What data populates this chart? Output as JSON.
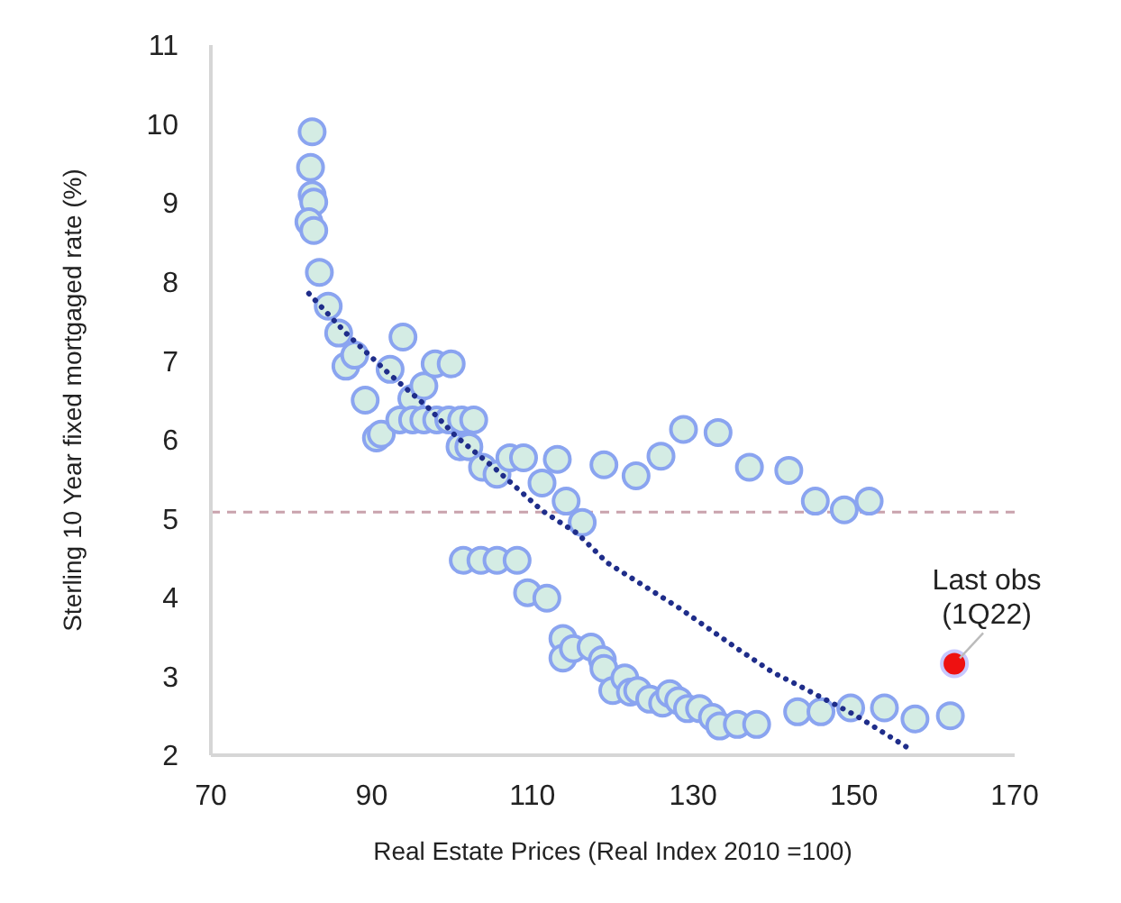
{
  "chart_data": {
    "type": "scatter",
    "xlabel": "Real Estate Prices (Real Index 2010 =100)",
    "ylabel": "Sterling 10 Year fixed mortgaged rate (%)",
    "xlim": [
      70,
      170
    ],
    "xticks": [
      70,
      90,
      110,
      130,
      150,
      170
    ],
    "ylim": [
      2,
      11
    ],
    "yticks": [
      2,
      3,
      4,
      5,
      6,
      7,
      8,
      9,
      10,
      11
    ],
    "grid": false,
    "marker": "circle",
    "series": [
      {
        "color": "#d4ece4",
        "x": [
          82.6,
          82.4,
          82.6,
          82.8,
          82.2,
          82.8,
          83.5,
          84.6,
          85.9,
          86.8,
          87.9,
          89.2,
          90.6,
          91.2,
          92.3,
          93.9,
          95.0,
          96.5,
          97.9,
          99.9,
          93.5,
          95.1,
          96.5,
          98.1,
          99.6,
          101.2,
          102.7,
          101.0,
          102.1,
          103.8,
          105.6,
          107.2,
          108.9,
          111.2,
          113.1,
          114.2,
          116.2,
          118.9,
          122.9,
          126.0,
          128.8,
          133.1,
          137.0,
          141.9,
          145.2,
          148.8,
          151.9,
          101.4,
          103.6,
          105.6,
          108.1,
          109.4,
          111.8,
          113.8,
          113.8,
          115.1,
          117.3,
          118.7,
          118.9,
          120.0,
          121.5,
          122.2,
          123.1,
          124.6,
          126.2,
          127.1,
          128.2,
          129.3,
          130.8,
          132.4,
          133.3,
          135.5,
          137.9,
          143.0,
          145.9,
          149.6,
          153.8,
          157.6,
          162.0
        ],
        "values": [
          9.9,
          9.45,
          9.1,
          9.01,
          8.76,
          8.65,
          8.12,
          7.69,
          7.35,
          6.93,
          7.07,
          6.5,
          6.02,
          6.07,
          6.89,
          7.3,
          6.52,
          6.68,
          6.96,
          6.96,
          6.25,
          6.25,
          6.25,
          6.25,
          6.25,
          6.25,
          6.25,
          5.91,
          5.91,
          5.65,
          5.56,
          5.77,
          5.77,
          5.45,
          5.75,
          5.22,
          4.95,
          5.68,
          5.54,
          5.79,
          6.13,
          6.09,
          5.65,
          5.61,
          5.22,
          5.11,
          5.22,
          4.47,
          4.47,
          4.47,
          4.47,
          4.06,
          3.99,
          3.48,
          3.23,
          3.35,
          3.37,
          3.21,
          3.1,
          2.82,
          2.98,
          2.8,
          2.82,
          2.71,
          2.66,
          2.78,
          2.69,
          2.59,
          2.59,
          2.48,
          2.37,
          2.39,
          2.39,
          2.55,
          2.55,
          2.6,
          2.6,
          2.46,
          2.5
        ]
      },
      {
        "color": "#ee1111",
        "x": [
          162.5
        ],
        "values": [
          3.16
        ]
      },
      {
        "type": "line",
        "color": "#1f2d8a",
        "line_style": "dotted",
        "marker": "none",
        "x": [
          82.2,
          86.8,
          92.1,
          97.2,
          100.5,
          105.4,
          111.2,
          115.6,
          119.3,
          128.2,
          135.5,
          139.9,
          143.0,
          150.3,
          157.4
        ],
        "values": [
          7.85,
          7.35,
          6.84,
          6.39,
          6.04,
          5.63,
          5.1,
          4.81,
          4.44,
          3.87,
          3.35,
          3.05,
          2.89,
          2.5,
          2.05
        ]
      }
    ],
    "ref_lines": [
      {
        "axis": "y",
        "value": 5.08,
        "color": "#c9a3ad",
        "line_style": "dashed"
      }
    ],
    "annotations": [
      {
        "text": "Last obs (1Q22)",
        "x": 162.5,
        "y": 3.16
      }
    ]
  }
}
